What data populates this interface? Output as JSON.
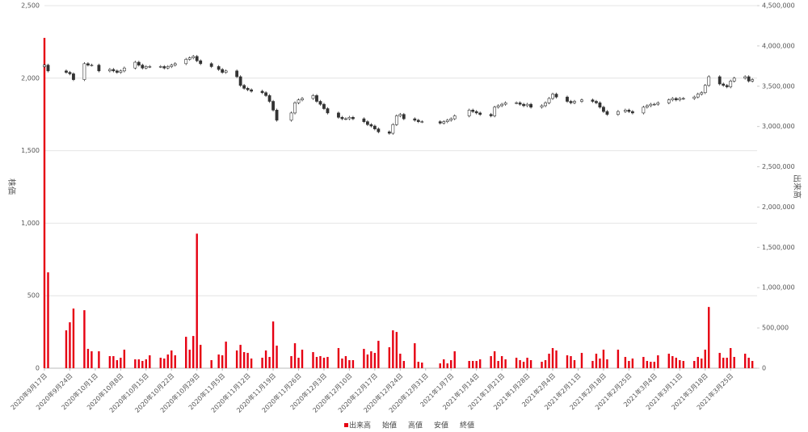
{
  "chart_data": {
    "type": "candlestick",
    "y_label": "株価",
    "y2_label": "出来高",
    "ylim": [
      0,
      2500
    ],
    "yticks": [
      0,
      500,
      {
        "value": 1000,
        "label": "1,000"
      },
      {
        "value": 1500,
        "label": "1,500"
      },
      {
        "value": 2000,
        "label": "2,000"
      },
      {
        "value": 2500,
        "label": "2,500"
      }
    ],
    "y2lim": [
      0,
      4500000
    ],
    "y2ticks": [
      0,
      {
        "value": 500000,
        "label": "500,000"
      },
      {
        "value": 1000000,
        "label": "1,000,000"
      },
      {
        "value": 1500000,
        "label": "1,500,000"
      },
      {
        "value": 2000000,
        "label": "2,000,000"
      },
      {
        "value": 2500000,
        "label": "2,500,000"
      },
      {
        "value": 3000000,
        "label": "3,000,000"
      },
      {
        "value": 3500000,
        "label": "3,500,000"
      },
      {
        "value": 4000000,
        "label": "4,000,000"
      },
      {
        "value": 4500000,
        "label": "4,500,000"
      }
    ],
    "grid": true,
    "legend": "bottom",
    "xticks": [
      "2020年9月17日",
      "2020年9月24日",
      "2020年10月1日",
      "2020年10月8日",
      "2020年10月15日",
      "2020年10月22日",
      "2020年10月29日",
      "2020年11月5日",
      "2020年11月12日",
      "2020年11月19日",
      "2020年11月26日",
      "2020年12月3日",
      "2020年12月10日",
      "2020年12月17日",
      "2020年12月24日",
      "2020年12月31日",
      "2021年1月7日",
      "2021年1月14日",
      "2021年1月21日",
      "2021年1月28日",
      "2021年2月4日",
      "2021年2月11日",
      "2021年2月18日",
      "2021年2月25日",
      "2021年3月4日",
      "2021年3月11日",
      "2021年3月18日",
      "2021年3月25日"
    ],
    "x": [
      "2020年9月17日",
      "2020年9月18日",
      "2020年9月23日",
      "2020年9月24日",
      "2020年9月25日",
      "2020年9月28日",
      "2020年9月29日",
      "2020年9月30日",
      "2020年10月2日",
      "2020年10月5日",
      "2020年10月6日",
      "2020年10月7日",
      "2020年10月8日",
      "2020年10月9日",
      "2020年10月12日",
      "2020年10月13日",
      "2020年10月14日",
      "2020年10月15日",
      "2020年10月16日",
      "2020年10月19日",
      "2020年10月20日",
      "2020年10月21日",
      "2020年10月22日",
      "2020年10月23日",
      "2020年10月26日",
      "2020年10月27日",
      "2020年10月28日",
      "2020年10月29日",
      "2020年10月30日",
      "2020年11月2日",
      "2020年11月4日",
      "2020年11月5日",
      "2020年11月6日",
      "2020年11月9日",
      "2020年11月10日",
      "2020年11月11日",
      "2020年11月12日",
      "2020年11月13日",
      "2020年11月16日",
      "2020年11月17日",
      "2020年11月18日",
      "2020年11月19日",
      "2020年11月20日",
      "2020年11月24日",
      "2020年11月25日",
      "2020年11月26日",
      "2020年11月27日",
      "2020年11月30日",
      "2020年12月1日",
      "2020年12月2日",
      "2020年12月3日",
      "2020年12月4日",
      "2020年12月7日",
      "2020年12月8日",
      "2020年12月9日",
      "2020年12月10日",
      "2020年12月11日",
      "2020年12月14日",
      "2020年12月15日",
      "2020年12月16日",
      "2020年12月17日",
      "2020年12月18日",
      "2020年12月21日",
      "2020年12月22日",
      "2020年12月23日",
      "2020年12月24日",
      "2020年12月25日",
      "2020年12月28日",
      "2020年12月29日",
      "2020年12月30日",
      "2021年1月4日",
      "2021年1月5日",
      "2021年1月6日",
      "2021年1月7日",
      "2021年1月8日",
      "2021年1月12日",
      "2021年1月13日",
      "2021年1月14日",
      "2021年1月15日",
      "2021年1月18日",
      "2021年1月19日",
      "2021年1月20日",
      "2021年1月21日",
      "2021年1月22日",
      "2021年1月25日",
      "2021年1月26日",
      "2021年1月27日",
      "2021年1月28日",
      "2021年1月29日",
      "2021年2月1日",
      "2021年2月2日",
      "2021年2月3日",
      "2021年2月4日",
      "2021年2月5日",
      "2021年2月8日",
      "2021年2月9日",
      "2021年2月10日",
      "2021年2月12日",
      "2021年2月15日",
      "2021年2月16日",
      "2021年2月17日",
      "2021年2月18日",
      "2021年2月19日",
      "2021年2月22日",
      "2021年2月24日",
      "2021年2月25日",
      "2021年2月26日",
      "2021年3月1日",
      "2021年3月2日",
      "2021年3月3日",
      "2021年3月4日",
      "2021年3月5日",
      "2021年3月8日",
      "2021年3月9日",
      "2021年3月10日",
      "2021年3月11日",
      "2021年3月12日",
      "2021年3月15日",
      "2021年3月16日",
      "2021年3月17日",
      "2021年3月18日",
      "2021年3月19日",
      "2021年3月22日",
      "2021年3月23日",
      "2021年3月24日",
      "2021年3月25日",
      "2021年3月26日",
      "2021年3月29日",
      "2021年3月30日",
      "2021年3月31日"
    ],
    "series": [
      {
        "name": "出来高",
        "color": "#e60012",
        "axis": "y2",
        "values": [
          4100000,
          1190000,
          470000,
          570000,
          740000,
          720000,
          240000,
          210000,
          210000,
          150000,
          150000,
          100000,
          130000,
          230000,
          110000,
          110000,
          90000,
          110000,
          160000,
          130000,
          120000,
          170000,
          220000,
          160000,
          390000,
          230000,
          400000,
          1670000,
          290000,
          100000,
          170000,
          160000,
          330000,
          220000,
          290000,
          200000,
          190000,
          120000,
          130000,
          220000,
          140000,
          580000,
          280000,
          150000,
          310000,
          130000,
          230000,
          200000,
          140000,
          150000,
          130000,
          140000,
          250000,
          120000,
          150000,
          100000,
          100000,
          240000,
          170000,
          210000,
          190000,
          340000,
          260000,
          470000,
          450000,
          180000,
          90000,
          310000,
          80000,
          70000,
          60000,
          110000,
          60000,
          100000,
          210000,
          90000,
          90000,
          90000,
          110000,
          150000,
          210000,
          90000,
          150000,
          110000,
          130000,
          100000,
          80000,
          130000,
          100000,
          80000,
          100000,
          180000,
          250000,
          220000,
          160000,
          150000,
          100000,
          190000,
          90000,
          180000,
          120000,
          230000,
          110000,
          230000,
          140000,
          90000,
          120000,
          140000,
          90000,
          80000,
          80000,
          160000,
          180000,
          150000,
          130000,
          100000,
          90000,
          90000,
          140000,
          120000,
          230000,
          760000,
          190000,
          130000,
          130000,
          250000,
          140000,
          180000,
          130000,
          90000
        ]
      },
      {
        "name": "始値",
        "values": [
          2080,
          2090,
          2050,
          2040,
          2030,
          1990,
          2100,
          2090,
          2090,
          2050,
          2060,
          2050,
          2040,
          2050,
          2070,
          2110,
          2090,
          2070,
          2080,
          2080,
          2080,
          2070,
          2080,
          2090,
          2100,
          2130,
          2140,
          2150,
          2120,
          2100,
          2080,
          2060,
          2040,
          2050,
          2010,
          1950,
          1930,
          1920,
          1910,
          1900,
          1880,
          1840,
          1780,
          1710,
          1760,
          1830,
          1850,
          1860,
          1880,
          1840,
          1820,
          1790,
          1760,
          1730,
          1720,
          1720,
          1730,
          1720,
          1700,
          1680,
          1670,
          1650,
          1630,
          1620,
          1680,
          1740,
          1750,
          1720,
          1710,
          1700,
          1700,
          1690,
          1700,
          1710,
          1720,
          1740,
          1780,
          1770,
          1760,
          1750,
          1740,
          1800,
          1810,
          1820,
          1830,
          1830,
          1820,
          1810,
          1820,
          1800,
          1810,
          1830,
          1860,
          1890,
          1870,
          1840,
          1830,
          1840,
          1850,
          1840,
          1830,
          1800,
          1770,
          1750,
          1770,
          1780,
          1770,
          1760,
          1800,
          1810,
          1820,
          1820,
          1830,
          1850,
          1860,
          1850,
          1860,
          1860,
          1870,
          1890,
          1900,
          1950,
          2010,
          1960,
          1950,
          1940,
          1980,
          2000,
          2010,
          1980
        ]
      },
      {
        "name": "高値",
        "values": [
          2100,
          2100,
          2060,
          2050,
          2040,
          2110,
          2110,
          2100,
          2100,
          2070,
          2070,
          2060,
          2060,
          2080,
          2120,
          2120,
          2100,
          2090,
          2090,
          2090,
          2090,
          2090,
          2100,
          2110,
          2140,
          2150,
          2160,
          2160,
          2130,
          2110,
          2090,
          2070,
          2060,
          2060,
          2020,
          1960,
          1940,
          1930,
          1920,
          1910,
          1890,
          1850,
          1790,
          1770,
          1840,
          1860,
          1870,
          1890,
          1890,
          1850,
          1830,
          1800,
          1770,
          1740,
          1730,
          1740,
          1740,
          1730,
          1710,
          1690,
          1680,
          1660,
          1640,
          1690,
          1750,
          1760,
          1760,
          1730,
          1720,
          1710,
          1710,
          1710,
          1720,
          1730,
          1750,
          1790,
          1790,
          1780,
          1770,
          1760,
          1810,
          1820,
          1830,
          1840,
          1840,
          1840,
          1830,
          1830,
          1830,
          1820,
          1840,
          1870,
          1900,
          1900,
          1880,
          1850,
          1850,
          1860,
          1860,
          1850,
          1840,
          1810,
          1780,
          1780,
          1790,
          1790,
          1780,
          1810,
          1820,
          1830,
          1830,
          1840,
          1860,
          1870,
          1870,
          1870,
          1870,
          1880,
          1900,
          1910,
          1960,
          2020,
          2020,
          1970,
          1960,
          1990,
          2010,
          2020,
          2020,
          2000
        ]
      },
      {
        "name": "安値",
        "values": [
          2070,
          2040,
          2030,
          2020,
          1980,
          1980,
          2080,
          2080,
          2040,
          2040,
          2040,
          2030,
          2030,
          2040,
          2060,
          2080,
          2060,
          2060,
          2070,
          2070,
          2060,
          2060,
          2070,
          2080,
          2090,
          2120,
          2130,
          2110,
          2090,
          2070,
          2050,
          2030,
          2030,
          2000,
          1940,
          1920,
          1910,
          1900,
          1890,
          1870,
          1830,
          1770,
          1700,
          1700,
          1750,
          1820,
          1840,
          1850,
          1830,
          1810,
          1780,
          1750,
          1720,
          1710,
          1710,
          1710,
          1710,
          1690,
          1670,
          1660,
          1640,
          1620,
          1610,
          1610,
          1670,
          1730,
          1710,
          1700,
          1690,
          1690,
          1680,
          1680,
          1690,
          1700,
          1710,
          1730,
          1760,
          1750,
          1740,
          1730,
          1730,
          1790,
          1800,
          1810,
          1820,
          1810,
          1800,
          1800,
          1790,
          1790,
          1800,
          1820,
          1850,
          1860,
          1830,
          1820,
          1820,
          1830,
          1830,
          1820,
          1790,
          1760,
          1740,
          1740,
          1760,
          1760,
          1750,
          1750,
          1790,
          1800,
          1810,
          1810,
          1820,
          1840,
          1840,
          1840,
          1850,
          1850,
          1860,
          1880,
          1890,
          1940,
          1950,
          1940,
          1930,
          1930,
          1970,
          1990,
          1970,
          1970
        ]
      },
      {
        "name": "終値",
        "values": [
          2090,
          2050,
          2040,
          2030,
          1990,
          2100,
          2090,
          2090,
          2050,
          2060,
          2050,
          2040,
          2050,
          2070,
          2110,
          2090,
          2070,
          2080,
          2080,
          2080,
          2070,
          2080,
          2090,
          2100,
          2130,
          2140,
          2150,
          2120,
          2100,
          2080,
          2060,
          2040,
          2050,
          2010,
          1950,
          1930,
          1920,
          1910,
          1900,
          1880,
          1840,
          1780,
          1710,
          1760,
          1830,
          1850,
          1860,
          1880,
          1840,
          1820,
          1790,
          1760,
          1730,
          1720,
          1720,
          1730,
          1720,
          1700,
          1680,
          1670,
          1650,
          1630,
          1620,
          1680,
          1740,
          1750,
          1720,
          1710,
          1700,
          1700,
          1690,
          1700,
          1710,
          1720,
          1740,
          1780,
          1770,
          1760,
          1750,
          1740,
          1800,
          1810,
          1820,
          1830,
          1830,
          1820,
          1810,
          1820,
          1800,
          1810,
          1830,
          1860,
          1890,
          1870,
          1840,
          1830,
          1840,
          1850,
          1840,
          1830,
          1800,
          1770,
          1750,
          1770,
          1780,
          1770,
          1760,
          1800,
          1810,
          1820,
          1820,
          1830,
          1850,
          1860,
          1850,
          1860,
          1860,
          1870,
          1890,
          1900,
          1950,
          2010,
          1960,
          1950,
          1940,
          1980,
          2000,
          2010,
          1980,
          1990
        ]
      }
    ]
  }
}
